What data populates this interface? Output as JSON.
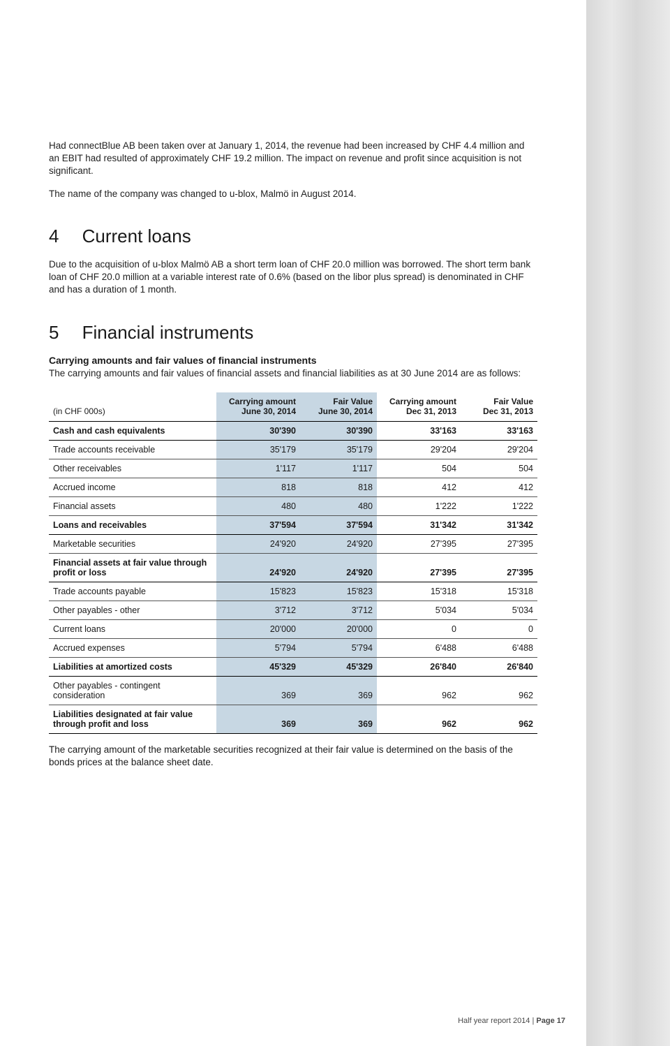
{
  "colors": {
    "shade_bg": "#c7d7e3",
    "text": "#1a1a1a",
    "band_gradient": [
      "#d8d8d8",
      "#e8e8e8",
      "#d8d8d8",
      "#eaeaea"
    ]
  },
  "intro": {
    "p1": "Had connectBlue AB been taken over at January 1, 2014, the revenue had been increased by CHF 4.4 million and an EBIT had resulted of approximately CHF 19.2 million. The impact on revenue and profit since acquisition is not significant.",
    "p2": "The name of the company was changed to u-blox, Malmö in August 2014."
  },
  "section4": {
    "num": "4",
    "title": "Current loans",
    "body": "Due to the acquisition of u-blox Malmö AB a short term loan of CHF 20.0 million was borrowed. The short term bank loan of CHF 20.0 million at a variable interest rate of 0.6% (based on the libor plus spread) is denominated in CHF and has a duration of 1 month."
  },
  "section5": {
    "num": "5",
    "title": "Financial instruments",
    "subhead": "Carrying amounts and fair values of financial instruments",
    "lead": "The carrying amounts and fair values of financial assets and financial liabilities as at 30 June 2014 are as follows:"
  },
  "table": {
    "units_label": "(in CHF 000s)",
    "headers": [
      {
        "l1": "Carrying amount",
        "l2": "June 30, 2014"
      },
      {
        "l1": "Fair Value",
        "l2": "June 30, 2014"
      },
      {
        "l1": "Carrying amount",
        "l2": "Dec 31, 2013"
      },
      {
        "l1": "Fair Value",
        "l2": "Dec 31, 2013"
      }
    ],
    "rows": [
      {
        "label": "Cash and cash equivalents",
        "v": [
          "30'390",
          "30'390",
          "33'163",
          "33'163"
        ],
        "bold": true
      },
      {
        "label": "Trade accounts receivable",
        "v": [
          "35'179",
          "35'179",
          "29'204",
          "29'204"
        ],
        "bold": false
      },
      {
        "label": "Other receivables",
        "v": [
          "1'117",
          "1'117",
          "504",
          "504"
        ],
        "bold": false
      },
      {
        "label": "Accrued income",
        "v": [
          "818",
          "818",
          "412",
          "412"
        ],
        "bold": false
      },
      {
        "label": "Financial assets",
        "v": [
          "480",
          "480",
          "1'222",
          "1'222"
        ],
        "bold": false
      },
      {
        "label": "Loans and receivables",
        "v": [
          "37'594",
          "37'594",
          "31'342",
          "31'342"
        ],
        "bold": true
      },
      {
        "label": "Marketable securities",
        "v": [
          "24'920",
          "24'920",
          "27'395",
          "27'395"
        ],
        "bold": false
      },
      {
        "label": "Financial assets at fair value through profit or loss",
        "v": [
          "24'920",
          "24'920",
          "27'395",
          "27'395"
        ],
        "bold": true
      },
      {
        "label": "Trade accounts payable",
        "v": [
          "15'823",
          "15'823",
          "15'318",
          "15'318"
        ],
        "bold": false
      },
      {
        "label": "Other payables - other",
        "v": [
          "3'712",
          "3'712",
          "5'034",
          "5'034"
        ],
        "bold": false
      },
      {
        "label": "Current loans",
        "v": [
          "20'000",
          "20'000",
          "0",
          "0"
        ],
        "bold": false
      },
      {
        "label": "Accrued expenses",
        "v": [
          "5'794",
          "5'794",
          "6'488",
          "6'488"
        ],
        "bold": false
      },
      {
        "label": "Liabilities at amortized costs",
        "v": [
          "45'329",
          "45'329",
          "26'840",
          "26'840"
        ],
        "bold": true
      },
      {
        "label": "Other payables - contingent consideration",
        "v": [
          "369",
          "369",
          "962",
          "962"
        ],
        "bold": false
      },
      {
        "label": "Liabilities designated at fair value through profit and loss",
        "v": [
          "369",
          "369",
          "962",
          "962"
        ],
        "bold": true
      }
    ]
  },
  "footnote": "The carrying amount of the marketable securities recognized at their fair value is determined on the basis of the bonds prices at the balance sheet date.",
  "footer": {
    "left": "Half year report 2014 | ",
    "right": "Page 17"
  }
}
